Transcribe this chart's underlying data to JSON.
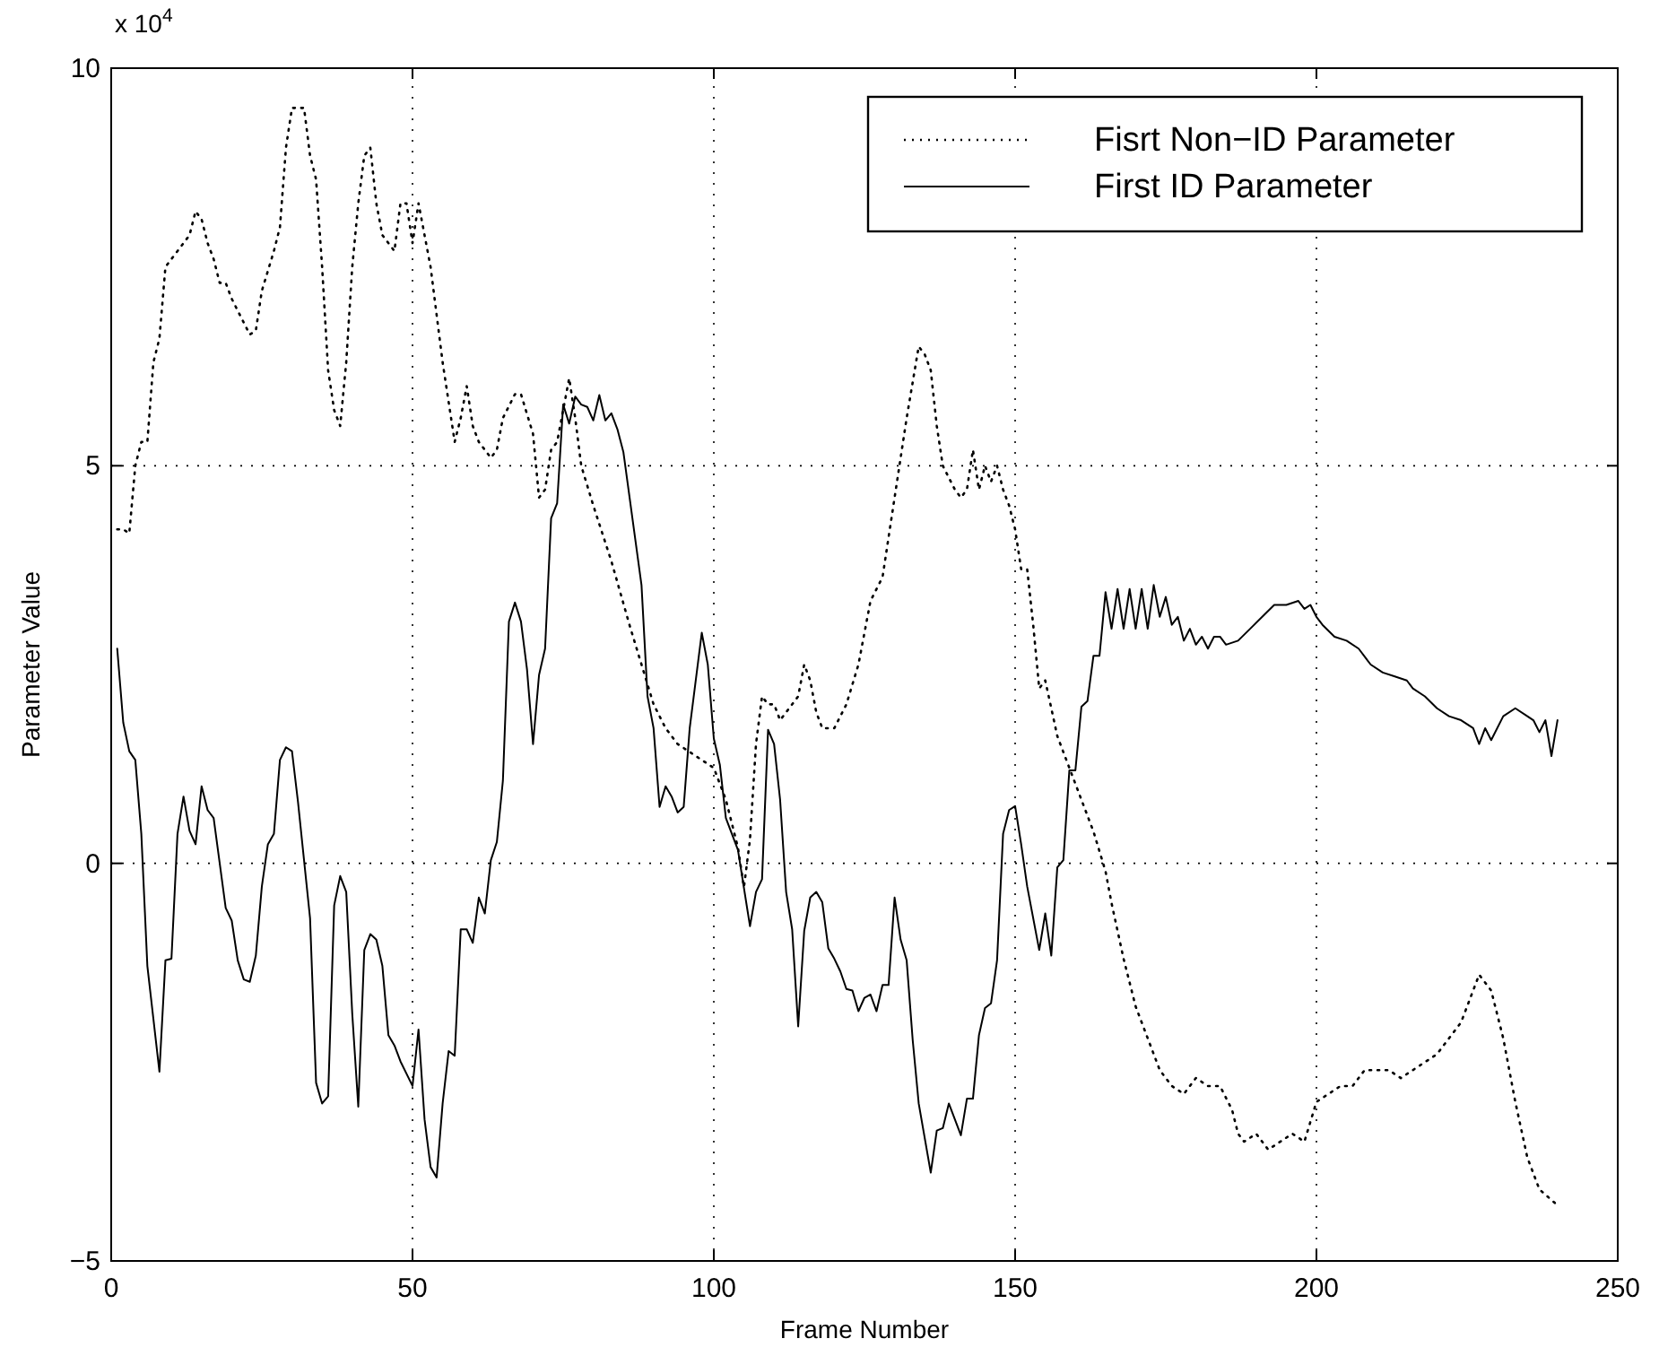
{
  "chart_data": {
    "type": "line",
    "xlabel": "Frame Number",
    "ylabel": "Parameter Value",
    "annotations": [
      "x 10$^{4}$"
    ],
    "xlim": [
      0,
      250
    ],
    "xticks": [
      0,
      50,
      100,
      150,
      200,
      250
    ],
    "ylim": [
      -5,
      10
    ],
    "yticks": [
      {
        "value": -5,
        "label": "−5"
      },
      0,
      5,
      10
    ],
    "grid": true,
    "legend": "top right",
    "series": [
      {
        "name": "Fisrt Non−ID Parameter",
        "color": "#000000",
        "line_style": "dotted",
        "x": [
          1,
          2,
          3,
          4,
          5,
          6,
          7,
          8,
          9,
          10,
          11,
          12,
          13,
          14,
          15,
          16,
          17,
          18,
          19,
          20,
          22,
          23,
          24,
          25,
          27,
          28,
          29,
          30,
          31,
          32,
          33,
          34,
          35,
          36,
          37,
          38,
          39,
          40,
          41,
          42,
          43,
          44,
          45,
          46,
          47,
          48,
          49,
          50,
          51,
          52,
          53,
          55,
          57,
          58,
          59,
          60,
          61,
          63,
          64,
          65,
          67,
          68,
          70,
          71,
          72,
          73,
          74,
          75,
          76,
          77,
          78,
          80,
          83,
          86,
          88,
          90,
          92,
          94,
          96,
          98,
          100,
          102,
          104,
          105,
          106,
          107,
          108,
          109,
          110,
          111,
          112,
          114,
          115,
          116,
          117,
          118,
          120,
          122,
          124,
          126,
          128,
          130,
          132,
          134,
          135,
          136,
          137,
          138,
          140,
          141,
          142,
          143,
          144,
          145,
          146,
          147,
          148,
          149,
          150,
          151,
          152,
          153,
          154,
          155,
          157,
          159,
          161,
          163,
          165,
          166,
          168,
          170,
          172,
          174,
          176,
          178,
          180,
          182,
          184,
          186,
          187,
          188,
          190,
          192,
          194,
          196,
          198,
          200,
          202,
          204,
          206,
          208,
          210,
          212,
          214,
          216,
          218,
          220,
          222,
          224,
          226,
          227,
          228,
          229,
          231,
          233,
          235,
          237,
          240
        ],
        "values": [
          4.2,
          4.2,
          4.15,
          5.0,
          5.3,
          5.3,
          6.3,
          6.6,
          7.5,
          7.6,
          7.7,
          7.8,
          7.9,
          8.2,
          8.1,
          7.8,
          7.6,
          7.3,
          7.3,
          7.1,
          6.8,
          6.65,
          6.7,
          7.2,
          7.7,
          8.0,
          9.0,
          9.5,
          9.5,
          9.5,
          8.9,
          8.6,
          7.5,
          6.2,
          5.7,
          5.5,
          6.3,
          7.5,
          8.3,
          8.9,
          9.0,
          8.3,
          7.9,
          7.8,
          7.7,
          8.3,
          8.3,
          7.8,
          8.3,
          7.9,
          7.5,
          6.3,
          5.3,
          5.6,
          6.0,
          5.5,
          5.3,
          5.1,
          5.2,
          5.6,
          5.9,
          5.9,
          5.4,
          4.6,
          4.7,
          5.2,
          5.3,
          5.7,
          6.1,
          5.6,
          5.0,
          4.5,
          3.8,
          3.0,
          2.5,
          2.0,
          1.7,
          1.5,
          1.4,
          1.3,
          1.2,
          0.8,
          0.2,
          -0.3,
          0.3,
          1.5,
          2.1,
          2.0,
          2.0,
          1.8,
          1.9,
          2.1,
          2.5,
          2.3,
          1.9,
          1.7,
          1.7,
          2.0,
          2.5,
          3.3,
          3.6,
          4.6,
          5.6,
          6.5,
          6.4,
          6.2,
          5.5,
          5.0,
          4.7,
          4.6,
          4.7,
          5.2,
          4.7,
          5.0,
          4.8,
          5.0,
          4.7,
          4.5,
          4.2,
          3.7,
          3.7,
          3.0,
          2.2,
          2.3,
          1.6,
          1.2,
          0.8,
          0.4,
          -0.1,
          -0.5,
          -1.2,
          -1.8,
          -2.2,
          -2.6,
          -2.8,
          -2.9,
          -2.7,
          -2.8,
          -2.8,
          -3.1,
          -3.4,
          -3.5,
          -3.4,
          -3.6,
          -3.5,
          -3.4,
          -3.5,
          -3.0,
          -2.9,
          -2.8,
          -2.8,
          -2.6,
          -2.6,
          -2.6,
          -2.7,
          -2.6,
          -2.5,
          -2.4,
          -2.2,
          -2.0,
          -1.6,
          -1.4,
          -1.5,
          -1.6,
          -2.2,
          -3.0,
          -3.7,
          -4.1,
          -4.3
        ]
      },
      {
        "name": "First ID Parameter",
        "color": "#000000",
        "line_style": "solid",
        "x": [
          1,
          2,
          3,
          4,
          5,
          6,
          8,
          9,
          10,
          11,
          12,
          13,
          14,
          15,
          16,
          17,
          19,
          20,
          21,
          22,
          23,
          24,
          25,
          26,
          27,
          28,
          29,
          30,
          31,
          33,
          34,
          35,
          36,
          37,
          38,
          39,
          40,
          41,
          42,
          43,
          44,
          45,
          46,
          47,
          48,
          50,
          51,
          52,
          53,
          54,
          55,
          56,
          57,
          58,
          59,
          60,
          61,
          62,
          63,
          64,
          65,
          66,
          67,
          68,
          69,
          70,
          71,
          72,
          73,
          74,
          75,
          76,
          77,
          78,
          79,
          80,
          81,
          82,
          83,
          84,
          85,
          88,
          89,
          90,
          91,
          92,
          93,
          94,
          95,
          96,
          98,
          99,
          100,
          101,
          102,
          103,
          104,
          106,
          107,
          108,
          109,
          110,
          111,
          112,
          113,
          114,
          115,
          116,
          117,
          118,
          119,
          120,
          121,
          122,
          123,
          124,
          125,
          126,
          127,
          128,
          129,
          130,
          131,
          132,
          133,
          134,
          136,
          137,
          138,
          139,
          140,
          141,
          142,
          143,
          144,
          145,
          146,
          147,
          148,
          149,
          150,
          151,
          152,
          154,
          155,
          156,
          157,
          158,
          159,
          160,
          161,
          162,
          163,
          164,
          165,
          166,
          167,
          168,
          169,
          170,
          171,
          172,
          173,
          174,
          175,
          176,
          177,
          178,
          179,
          180,
          181,
          182,
          183,
          184,
          185,
          187,
          189,
          191,
          193,
          195,
          197,
          198,
          199,
          200,
          201,
          203,
          205,
          207,
          209,
          211,
          213,
          215,
          216,
          218,
          220,
          222,
          224,
          226,
          227,
          228,
          229,
          231,
          233,
          235,
          236,
          237,
          238,
          239,
          240
        ],
        "values": [
          2.7,
          1.77,
          1.41,
          1.3,
          0.37,
          -1.29,
          -2.62,
          -1.22,
          -1.2,
          0.37,
          0.84,
          0.41,
          0.24,
          0.97,
          0.67,
          0.57,
          -0.56,
          -0.72,
          -1.22,
          -1.46,
          -1.49,
          -1.16,
          -0.29,
          0.24,
          0.37,
          1.3,
          1.46,
          1.41,
          0.77,
          -0.69,
          -2.76,
          -3.02,
          -2.93,
          -0.53,
          -0.16,
          -0.36,
          -1.89,
          -3.06,
          -1.09,
          -0.89,
          -0.96,
          -1.29,
          -2.16,
          -2.29,
          -2.49,
          -2.8,
          -2.09,
          -3.22,
          -3.82,
          -3.95,
          -3.02,
          -2.36,
          -2.42,
          -0.83,
          -0.83,
          -1.0,
          -0.43,
          -0.63,
          0.04,
          0.27,
          1.04,
          3.04,
          3.28,
          3.04,
          2.44,
          1.5,
          2.37,
          2.7,
          4.34,
          4.53,
          5.77,
          5.53,
          5.87,
          5.77,
          5.74,
          5.57,
          5.89,
          5.57,
          5.66,
          5.46,
          5.17,
          3.5,
          2.1,
          1.7,
          0.71,
          0.97,
          0.84,
          0.64,
          0.71,
          1.7,
          2.9,
          2.5,
          1.57,
          1.24,
          0.57,
          0.37,
          0.17,
          -0.79,
          -0.36,
          -0.2,
          1.68,
          1.5,
          0.8,
          -0.36,
          -0.83,
          -2.05,
          -0.85,
          -0.43,
          -0.36,
          -0.49,
          -1.07,
          -1.2,
          -1.36,
          -1.58,
          -1.6,
          -1.86,
          -1.69,
          -1.65,
          -1.86,
          -1.53,
          -1.53,
          -0.43,
          -0.96,
          -1.22,
          -2.22,
          -3.02,
          -3.89,
          -3.36,
          -3.33,
          -3.02,
          -3.22,
          -3.42,
          -2.96,
          -2.96,
          -2.16,
          -1.82,
          -1.76,
          -1.22,
          0.37,
          0.67,
          0.72,
          0.24,
          -0.29,
          -1.09,
          -0.63,
          -1.16,
          -0.05,
          0.04,
          1.17,
          1.17,
          1.97,
          2.04,
          2.61,
          2.61,
          3.41,
          2.95,
          3.45,
          2.95,
          3.45,
          2.95,
          3.45,
          2.95,
          3.5,
          3.1,
          3.35,
          3.0,
          3.1,
          2.8,
          2.95,
          2.75,
          2.85,
          2.7,
          2.85,
          2.85,
          2.75,
          2.8,
          2.95,
          3.1,
          3.25,
          3.25,
          3.3,
          3.2,
          3.25,
          3.1,
          3.0,
          2.85,
          2.8,
          2.7,
          2.5,
          2.4,
          2.35,
          2.3,
          2.2,
          2.1,
          1.95,
          1.85,
          1.8,
          1.7,
          1.5,
          1.7,
          1.55,
          1.85,
          1.95,
          1.85,
          1.8,
          1.65,
          1.8,
          1.35,
          1.8
        ]
      }
    ]
  }
}
